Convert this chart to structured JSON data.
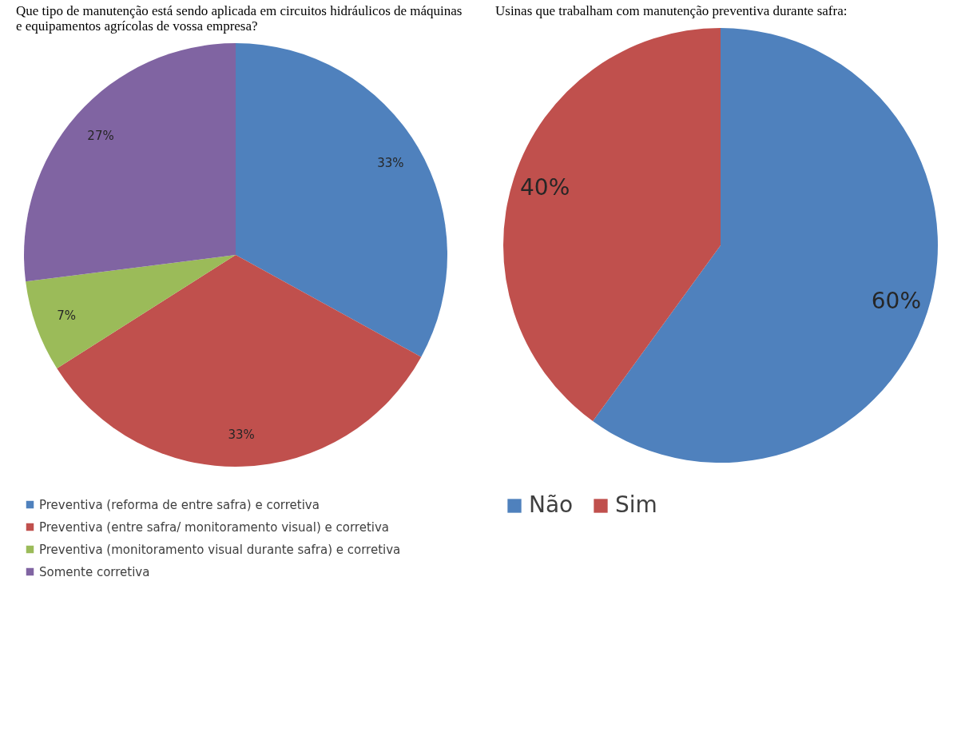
{
  "chart_data": [
    {
      "type": "pie",
      "title": "Que tipo de manutenção está sendo aplicada em circuitos hidráulicos de máquinas e equipamentos agrícolas de vossa empresa?",
      "categories": [
        "Preventiva (reforma de entre safra) e corretiva",
        "Preventiva (entre safra/ monitoramento visual) e corretiva",
        "Preventiva (monitoramento visual durante safra) e corretiva",
        "Somente corretiva"
      ],
      "values": [
        33,
        33,
        7,
        27
      ],
      "colors": [
        "#4f81bd",
        "#c0504d",
        "#9bbb59",
        "#8064a2"
      ],
      "value_labels": [
        "33%",
        "33%",
        "7%",
        "27%"
      ],
      "legend": "bottom"
    },
    {
      "type": "pie",
      "title": "Usinas que trabalham com manutenção preventiva durante safra:",
      "categories": [
        "Não",
        "Sim"
      ],
      "values": [
        60,
        40
      ],
      "colors": [
        "#4f81bd",
        "#c0504d"
      ],
      "value_labels": [
        "60%",
        "40%"
      ],
      "legend": "bottom"
    }
  ]
}
